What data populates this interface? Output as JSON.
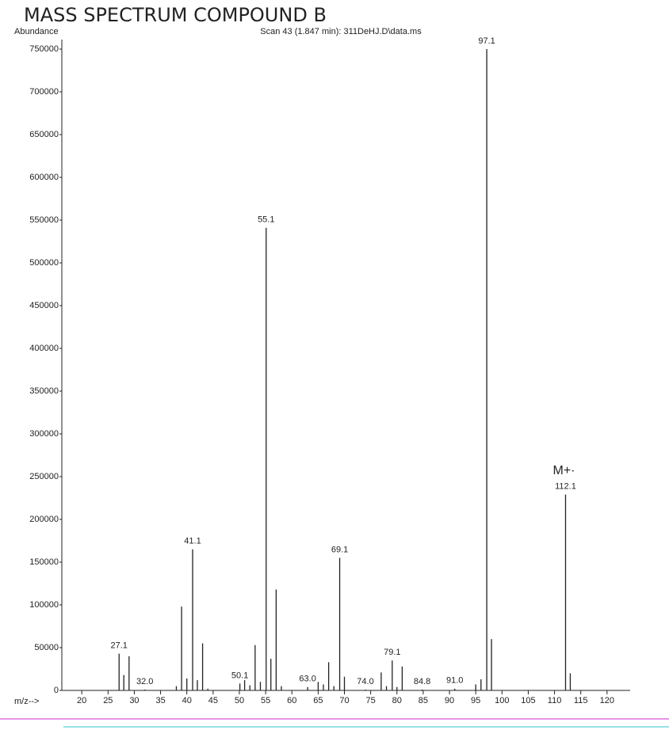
{
  "chart_data": {
    "type": "stick",
    "title": "MASS SPECTRUM COMPOUND B",
    "subtitle": "Scan 43 (1.847 min): 311DeHJ.D\\data.ms",
    "y_label": "Abundance",
    "x_label": "m/z-->",
    "annotation": "M+·",
    "color": "#222222",
    "x": [
      27.1,
      28,
      29,
      32.0,
      38,
      39,
      40,
      41.1,
      42,
      43,
      44,
      50.1,
      51,
      52,
      53,
      54,
      55.1,
      56,
      57,
      58,
      63.0,
      65,
      66,
      67,
      68,
      69.1,
      70,
      74.0,
      77,
      78,
      79.1,
      80,
      81,
      84.8,
      91.0,
      95,
      96,
      97.1,
      98,
      112.1,
      113
    ],
    "values": [
      43000,
      18000,
      40000,
      1000,
      5000,
      98000,
      14000,
      165000,
      12000,
      55000,
      2000,
      8000,
      12000,
      6000,
      53000,
      10000,
      541000,
      37000,
      118000,
      5000,
      4000,
      10000,
      7000,
      33000,
      5000,
      155000,
      16000,
      1000,
      21000,
      5000,
      35000,
      4000,
      28000,
      1000,
      2000,
      7000,
      13000,
      750000,
      60000,
      229000,
      20000
    ],
    "x_labels": [
      "27.1",
      null,
      null,
      "32.0",
      null,
      null,
      null,
      "41.1",
      null,
      null,
      null,
      "50.1",
      null,
      null,
      null,
      null,
      "55.1",
      null,
      null,
      null,
      "63.0",
      null,
      null,
      null,
      null,
      "69.1",
      null,
      "74.0",
      null,
      null,
      "79.1",
      null,
      null,
      "84.8",
      "91.0",
      null,
      null,
      "97.1",
      null,
      "112.1",
      null
    ],
    "xlim": [
      16.2,
      124.4
    ],
    "ylim": [
      0,
      750000
    ],
    "xticks": [
      20,
      25,
      30,
      35,
      40,
      45,
      50,
      55,
      60,
      65,
      70,
      75,
      80,
      85,
      90,
      95,
      100,
      105,
      110,
      115,
      120
    ],
    "yticks": [
      0,
      50000,
      100000,
      150000,
      200000,
      250000,
      300000,
      350000,
      400000,
      450000,
      500000,
      550000,
      600000,
      650000,
      700000,
      750000
    ]
  }
}
